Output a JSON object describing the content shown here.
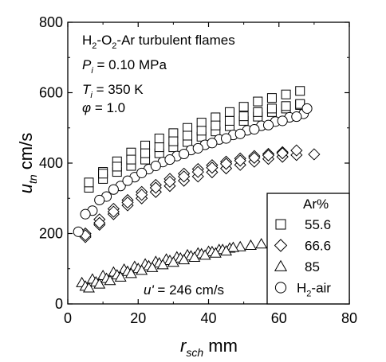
{
  "chart_data": {
    "type": "scatter",
    "title": "",
    "annotation": {
      "line1": {
        "base": "H",
        "sub1": "2",
        "mid": "-O",
        "sub2": "2",
        "rest": "-Ar turbulent flames"
      },
      "line2": {
        "sym": "P",
        "sub": "i",
        "rest": " = 0.10 MPa"
      },
      "line3": {
        "sym": "T",
        "sub": "i",
        "rest": " = 350 K"
      },
      "line4": {
        "sym": "φ",
        "rest": " = 1.0"
      },
      "uprime": {
        "sym": "u'",
        "rest": " = 246 cm/s"
      }
    },
    "xlabel": {
      "sym": "r",
      "sub": "sch",
      "unit": "  mm"
    },
    "ylabel": {
      "sym": "u",
      "sub": "tn",
      "unit": " cm/s"
    },
    "xlim": [
      0,
      80
    ],
    "ylim": [
      0,
      800
    ],
    "xticks": [
      "0",
      "20",
      "40",
      "60",
      "80"
    ],
    "yticks": [
      "0",
      "200",
      "400",
      "600",
      "800"
    ],
    "grid": false,
    "legend": {
      "title": "Ar%",
      "placement": "bottom-right",
      "entries": [
        {
          "label": "55.6",
          "marker": "square"
        },
        {
          "label": "66.6",
          "marker": "diamond"
        },
        {
          "label": "85",
          "marker": "triangle"
        },
        {
          "label": "H2-air",
          "label_base": "H",
          "label_sub": "2",
          "label_rest": "-air",
          "marker": "circle"
        }
      ]
    },
    "series": [
      {
        "name": "55.6",
        "marker": "square",
        "x": [
          6,
          10,
          14,
          18,
          22,
          26,
          30,
          34,
          38,
          42,
          46,
          50,
          54,
          58,
          62,
          66
        ],
        "y": [
          340,
          375,
          405,
          430,
          450,
          470,
          485,
          500,
          515,
          530,
          545,
          560,
          575,
          585,
          595,
          605
        ]
      },
      {
        "name": "55.6",
        "marker": "square",
        "x": [
          6,
          10,
          14,
          18,
          22,
          26,
          30,
          34,
          38,
          42,
          46,
          50,
          54,
          58,
          62,
          66
        ],
        "y": [
          330,
          355,
          375,
          392,
          410,
          428,
          445,
          460,
          475,
          490,
          505,
          520,
          532,
          545,
          555,
          565
        ]
      },
      {
        "name": "55.6",
        "marker": "square",
        "x": [
          6,
          10,
          14,
          18,
          22,
          26,
          30,
          34,
          38,
          42,
          46,
          50,
          54,
          58,
          62,
          66
        ],
        "y": [
          345,
          370,
          390,
          410,
          428,
          445,
          462,
          478,
          492,
          507,
          520,
          533,
          545,
          555,
          562,
          568
        ]
      },
      {
        "name": "66.6",
        "marker": "diamond",
        "x": [
          5,
          9,
          13,
          17,
          21,
          25,
          29,
          33,
          37,
          41,
          45,
          49,
          53,
          57,
          61,
          65,
          70
        ],
        "y": [
          190,
          225,
          255,
          280,
          300,
          318,
          335,
          350,
          362,
          374,
          385,
          395,
          404,
          412,
          418,
          423,
          425
        ]
      },
      {
        "name": "66.6",
        "marker": "diamond",
        "x": [
          5,
          9,
          13,
          17,
          21,
          25,
          29,
          33,
          37,
          41,
          45,
          49,
          53,
          57,
          61,
          65
        ],
        "y": [
          200,
          240,
          270,
          295,
          318,
          338,
          355,
          370,
          383,
          394,
          404,
          413,
          420,
          426,
          431,
          436
        ]
      },
      {
        "name": "66.6",
        "marker": "diamond",
        "x": [
          5,
          9,
          13,
          17,
          21,
          25,
          29,
          33,
          37,
          41,
          45,
          49,
          53,
          57,
          61
        ],
        "y": [
          195,
          230,
          262,
          288,
          310,
          330,
          347,
          362,
          375,
          387,
          398,
          407,
          415,
          422,
          428
        ]
      },
      {
        "name": "85",
        "marker": "triangle",
        "x": [
          4,
          7,
          10,
          13,
          16,
          19,
          22,
          25,
          28,
          31,
          34,
          37,
          40,
          43,
          46,
          49,
          52,
          55
        ],
        "y": [
          60,
          70,
          80,
          90,
          98,
          106,
          113,
          120,
          127,
          133,
          139,
          144,
          149,
          154,
          158,
          162,
          166,
          170
        ]
      },
      {
        "name": "85",
        "marker": "triangle",
        "x": [
          5,
          8,
          11,
          14,
          17,
          20,
          23,
          26,
          29,
          32,
          35,
          38,
          41,
          44,
          47
        ],
        "y": [
          50,
          62,
          72,
          82,
          92,
          100,
          108,
          116,
          123,
          130,
          136,
          142,
          148,
          154,
          160
        ]
      },
      {
        "name": "85",
        "marker": "triangle",
        "x": [
          6,
          9,
          12,
          15,
          18,
          21,
          24,
          27,
          30,
          33,
          36,
          39,
          42,
          45
        ],
        "y": [
          45,
          56,
          66,
          76,
          86,
          95,
          103,
          111,
          118,
          125,
          132,
          138,
          144,
          150
        ]
      },
      {
        "name": "H2-air",
        "marker": "circle",
        "x": [
          3,
          7,
          11,
          15,
          19,
          23,
          27,
          31,
          35,
          39,
          43,
          47,
          51,
          55,
          59,
          63,
          67
        ],
        "y": [
          205,
          265,
          305,
          335,
          360,
          383,
          403,
          420,
          437,
          452,
          467,
          480,
          493,
          506,
          518,
          530,
          540
        ]
      },
      {
        "name": "H2-air",
        "marker": "circle",
        "x": [
          5,
          9,
          13,
          17,
          21,
          25,
          29,
          33,
          37,
          41,
          45,
          49,
          53,
          57,
          61,
          65,
          68
        ],
        "y": [
          255,
          295,
          325,
          350,
          372,
          392,
          410,
          426,
          442,
          457,
          470,
          483,
          496,
          508,
          520,
          532,
          555
        ]
      }
    ]
  }
}
